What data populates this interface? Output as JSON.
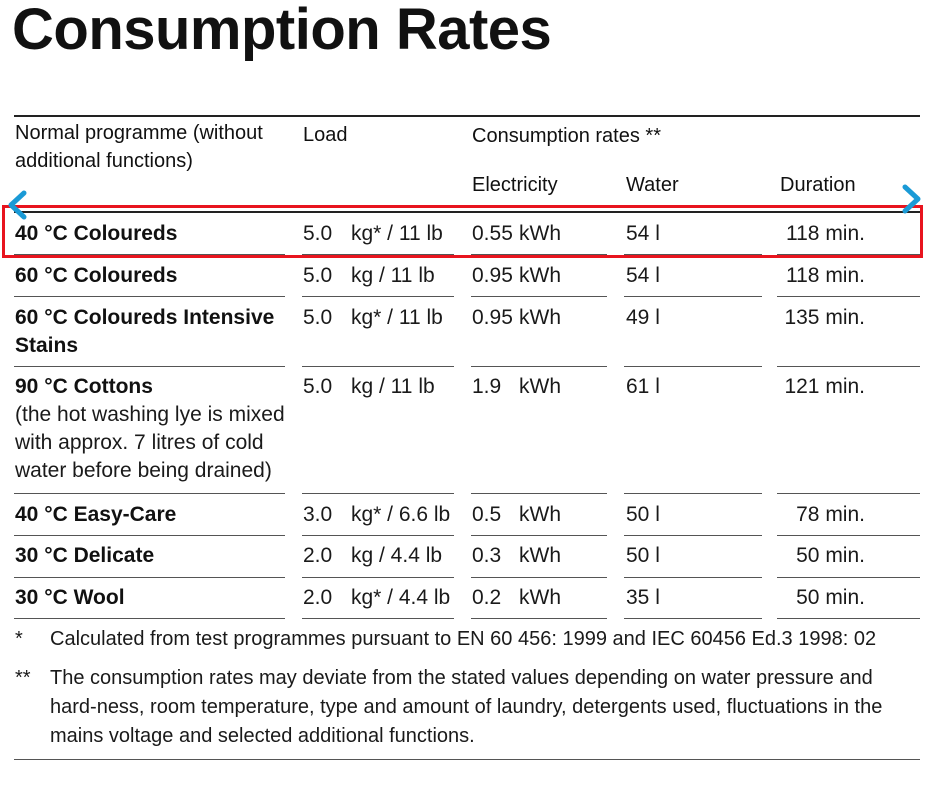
{
  "page": {
    "title": "Consumption Rates"
  },
  "table": {
    "headers": {
      "programme": "Normal programme (without additional functions)",
      "load": "Load",
      "consumption_group": "Consumption rates **",
      "electricity": "Electricity",
      "water": "Water",
      "duration": "Duration"
    },
    "rows": [
      {
        "programme": "40 °C Coloureds",
        "note": "",
        "load_value": "5.0",
        "load_unit": "kg* / 11 lb",
        "elec_value": "0.55",
        "elec_unit": "kWh",
        "water": "54 l",
        "duration": "118 min."
      },
      {
        "programme": "60 °C Coloureds",
        "note": "",
        "load_value": "5.0",
        "load_unit": "kg / 11 lb",
        "elec_value": "0.95",
        "elec_unit": "kWh",
        "water": "54 l",
        "duration": "118 min."
      },
      {
        "programme": "60 °C Coloureds Intensive Stains",
        "note": "",
        "load_value": "5.0",
        "load_unit": "kg* / 11 lb",
        "elec_value": "0.95",
        "elec_unit": "kWh",
        "water": "49 l",
        "duration": "135 min."
      },
      {
        "programme": "90 °C Cottons",
        "note": "(the hot washing lye is mixed with approx. 7 litres of cold water before being drained)",
        "load_value": "5.0",
        "load_unit": "kg / 11 lb",
        "elec_value": "1.9",
        "elec_unit": "kWh",
        "water": "61 l",
        "duration": "121 min."
      },
      {
        "programme": "40 °C Easy-Care",
        "note": "",
        "load_value": "3.0",
        "load_unit": "kg* / 6.6 lb",
        "elec_value": "0.5",
        "elec_unit": "kWh",
        "water": "50 l",
        "duration": "78 min."
      },
      {
        "programme": "30 °C Delicate",
        "note": "",
        "load_value": "2.0",
        "load_unit": "kg / 4.4 lb",
        "elec_value": "0.3",
        "elec_unit": "kWh",
        "water": "50 l",
        "duration": "50 min."
      },
      {
        "programme": "30 °C Wool",
        "note": "",
        "load_value": "2.0",
        "load_unit": "kg* / 4.4 lb",
        "elec_value": "0.2",
        "elec_unit": "kWh",
        "water": "35 l",
        "duration": "50 min."
      }
    ]
  },
  "footnotes": [
    {
      "mark": "*",
      "text": "Calculated from test programmes pursuant to EN 60 456: 1999 and IEC 60456 Ed.3 1998: 02"
    },
    {
      "mark": "**",
      "text": "The consumption rates may deviate from the stated values depending on water pressure and hard-ness, room temperature, type and amount of laundry, detergents used, fluctuations in the mains voltage and selected additional functions."
    }
  ],
  "colors": {
    "highlight": "#e8141e",
    "arrow": "#1a9ad6"
  },
  "icons": {
    "prev": "chevron-left-icon",
    "next": "chevron-right-icon"
  }
}
